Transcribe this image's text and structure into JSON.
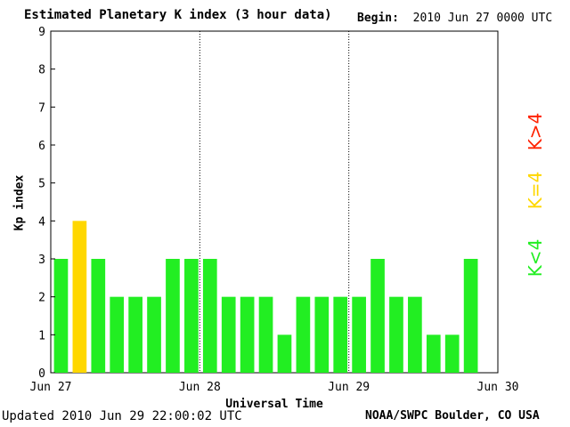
{
  "header": {
    "title": "Estimated Planetary K index (3 hour data)",
    "begin_label": "Begin:",
    "begin_value": "2010 Jun 27 0000 UTC"
  },
  "footer": {
    "updated": "Updated 2010 Jun 29 22:00:02 UTC",
    "source": "NOAA/SWPC Boulder, CO USA"
  },
  "legend": {
    "above": {
      "label": "K>4",
      "color": "#ff2200"
    },
    "equal": {
      "label": "K=4",
      "color": "#ffd700"
    },
    "below": {
      "label": "K<4",
      "color": "#22ee22"
    }
  },
  "chart_data": {
    "type": "bar",
    "xlabel": "Universal Time",
    "ylabel": "Kp index",
    "ylim": [
      0,
      9
    ],
    "yticks": [
      0,
      1,
      2,
      3,
      4,
      5,
      6,
      7,
      8,
      9
    ],
    "xticks": [
      "Jun 27",
      "Jun 28",
      "Jun 29",
      "Jun 30"
    ],
    "interval_hours": 3,
    "values": [
      3,
      4,
      3,
      2,
      2,
      2,
      3,
      3,
      3,
      2,
      2,
      2,
      1,
      2,
      2,
      2,
      2,
      3,
      2,
      2,
      1,
      1,
      3
    ],
    "grid": "dotted vertical lines at day boundaries",
    "colors": {
      "below": "#22ee22",
      "equal": "#ffd700",
      "above": "#ff2200"
    }
  }
}
